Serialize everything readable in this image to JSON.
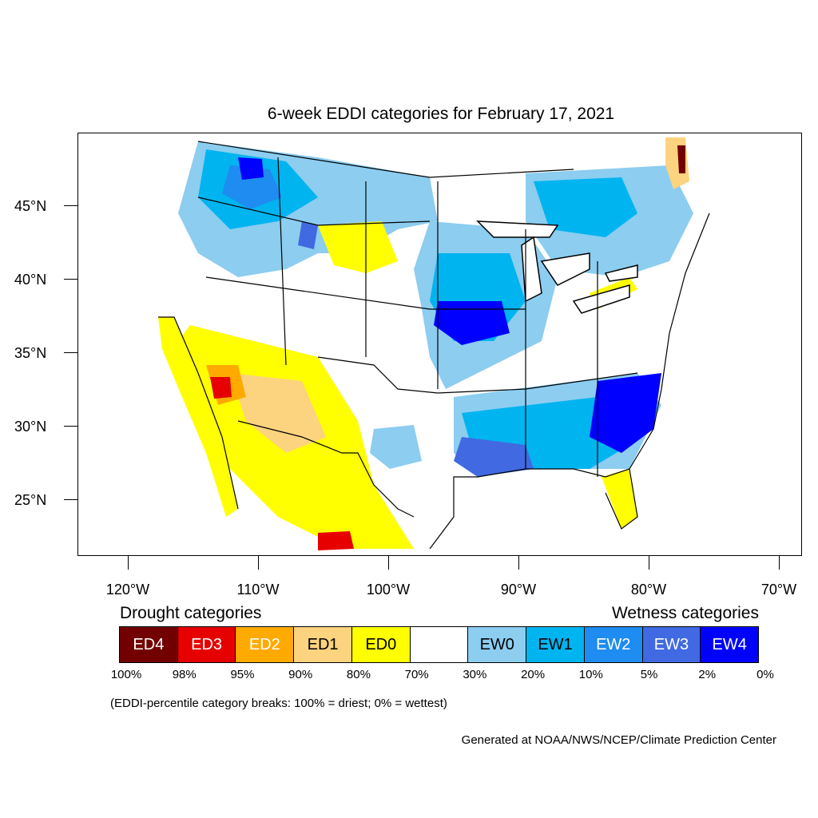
{
  "title": "6-week EDDI categories for February 17, 2021",
  "axes": {
    "lat_labels": [
      "45°N",
      "40°N",
      "35°N",
      "30°N",
      "25°N"
    ],
    "lon_labels": [
      "120°W",
      "110°W",
      "100°W",
      "90°W",
      "80°W",
      "70°W"
    ]
  },
  "legend": {
    "drought_heading": "Drought categories",
    "wetness_heading": "Wetness categories",
    "categories": [
      {
        "label": "ED4",
        "color": "#730000",
        "text_color": "#ffffff"
      },
      {
        "label": "ED3",
        "color": "#e60000",
        "text_color": "#ffffff"
      },
      {
        "label": "ED2",
        "color": "#ffaa00",
        "text_color": "#ffffff"
      },
      {
        "label": "ED1",
        "color": "#fcd37f",
        "text_color": "#000000"
      },
      {
        "label": "ED0",
        "color": "#ffff00",
        "text_color": "#000000"
      },
      {
        "label": "",
        "color": "#ffffff",
        "text_color": "#000000"
      },
      {
        "label": "EW0",
        "color": "#8ccdf0",
        "text_color": "#000000"
      },
      {
        "label": "EW1",
        "color": "#00b4f0",
        "text_color": "#000000"
      },
      {
        "label": "EW2",
        "color": "#1e8cf0",
        "text_color": "#ffffff"
      },
      {
        "label": "EW3",
        "color": "#4169e1",
        "text_color": "#ffffff"
      },
      {
        "label": "EW4",
        "color": "#0000ff",
        "text_color": "#ffffff"
      }
    ],
    "breaks": [
      "100%",
      "98%",
      "95%",
      "90%",
      "80%",
      "70%",
      "30%",
      "20%",
      "10%",
      "5%",
      "2%",
      "0%"
    ]
  },
  "note": "(EDDI-percentile category breaks: 100% = driest; 0% = wettest)",
  "credit": "Generated at NOAA/NWS/NCEP/Climate Prediction Center"
}
